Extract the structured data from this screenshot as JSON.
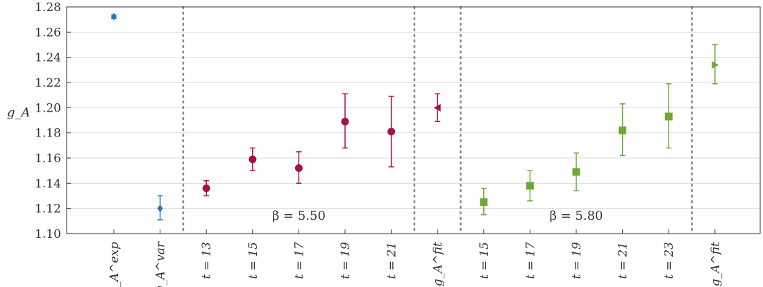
{
  "chart_data": {
    "type": "scatter",
    "ylabel": "g_A",
    "ylim": [
      1.1,
      1.28
    ],
    "yticks": [
      1.1,
      1.12,
      1.14,
      1.16,
      1.18,
      1.2,
      1.22,
      1.24,
      1.26,
      1.28
    ],
    "ytick_labels": [
      "1.10",
      "1.12",
      "1.14",
      "1.16",
      "1.18",
      "1.20",
      "1.22",
      "1.24",
      "1.26",
      "1.28"
    ],
    "grid": true,
    "categories": [
      "g_A^exp",
      "g_A^var",
      "t = 13",
      "t = 15",
      "t = 17",
      "t = 19",
      "t = 21",
      "g_A^fit",
      "t = 15",
      "t = 17",
      "t = 19",
      "t = 21",
      "t = 23",
      "g_A^fit"
    ],
    "colors": {
      "blue": "#1f77b4",
      "red": "#a5133b",
      "green": "#6ea934",
      "separator": "#888888"
    },
    "annotations": [
      {
        "text": "β = 5.50",
        "between": [
          3,
          7
        ]
      },
      {
        "text": "β = 5.80",
        "between": [
          9,
          13
        ]
      }
    ],
    "points": [
      {
        "x": 1,
        "y": 1.2723,
        "lo": 1.271,
        "hi": 1.2736,
        "color": "blue",
        "marker": "diamond"
      },
      {
        "x": 2,
        "y": 1.12,
        "lo": 1.111,
        "hi": 1.13,
        "color": "blue",
        "marker": "diamond"
      },
      {
        "x": 3,
        "y": 1.136,
        "lo": 1.13,
        "hi": 1.142,
        "color": "red",
        "marker": "circle"
      },
      {
        "x": 4,
        "y": 1.159,
        "lo": 1.15,
        "hi": 1.168,
        "color": "red",
        "marker": "circle"
      },
      {
        "x": 5,
        "y": 1.152,
        "lo": 1.14,
        "hi": 1.165,
        "color": "red",
        "marker": "circle"
      },
      {
        "x": 6,
        "y": 1.189,
        "lo": 1.168,
        "hi": 1.211,
        "color": "red",
        "marker": "circle"
      },
      {
        "x": 7,
        "y": 1.181,
        "lo": 1.153,
        "hi": 1.209,
        "color": "red",
        "marker": "circle"
      },
      {
        "x": 8,
        "y": 1.2,
        "lo": 1.189,
        "hi": 1.211,
        "color": "red",
        "marker": "triangle-left"
      },
      {
        "x": 9,
        "y": 1.125,
        "lo": 1.115,
        "hi": 1.136,
        "color": "green",
        "marker": "square"
      },
      {
        "x": 10,
        "y": 1.138,
        "lo": 1.126,
        "hi": 1.15,
        "color": "green",
        "marker": "square"
      },
      {
        "x": 11,
        "y": 1.149,
        "lo": 1.134,
        "hi": 1.164,
        "color": "green",
        "marker": "square"
      },
      {
        "x": 12,
        "y": 1.182,
        "lo": 1.162,
        "hi": 1.203,
        "color": "green",
        "marker": "square"
      },
      {
        "x": 13,
        "y": 1.193,
        "lo": 1.168,
        "hi": 1.219,
        "color": "green",
        "marker": "square"
      },
      {
        "x": 14,
        "y": 1.234,
        "lo": 1.219,
        "hi": 1.25,
        "color": "green",
        "marker": "triangle-right"
      }
    ],
    "separators_between": [
      [
        2,
        3
      ],
      [
        7,
        8
      ],
      [
        8,
        9
      ],
      [
        13,
        14
      ]
    ]
  }
}
